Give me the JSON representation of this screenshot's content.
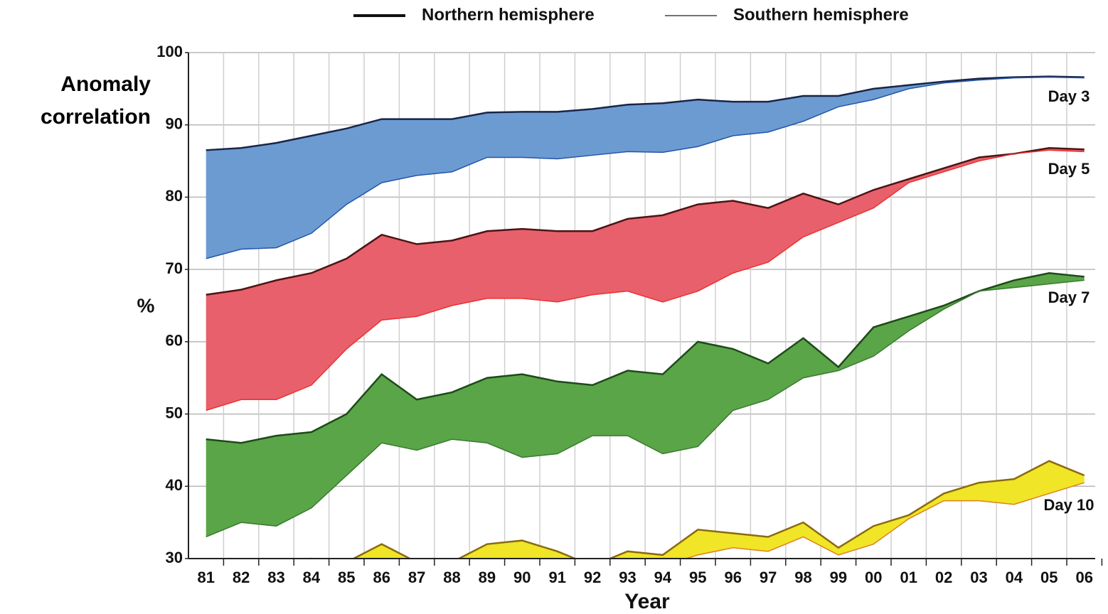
{
  "chart_data": {
    "type": "band-area",
    "y_title": "Anomaly correlation",
    "y_label": "%",
    "x_label": "Year",
    "legend": [
      {
        "name": "Northern hemisphere",
        "color": "#111111"
      },
      {
        "name": "Southern hemisphere",
        "color": "#444444"
      }
    ],
    "categories": [
      "81",
      "82",
      "83",
      "84",
      "85",
      "86",
      "87",
      "88",
      "89",
      "90",
      "91",
      "92",
      "93",
      "94",
      "95",
      "96",
      "97",
      "98",
      "99",
      "00",
      "01",
      "02",
      "03",
      "04",
      "05",
      "06"
    ],
    "ylim": [
      30,
      100
    ],
    "yticks": [
      30,
      40,
      50,
      60,
      70,
      80,
      90,
      100
    ],
    "grid": true,
    "bands": [
      {
        "label": "Day 3",
        "color": "#6c9bd2",
        "nh_color": "#1a2545",
        "sh_color": "#2255aa",
        "northern": [
          86.5,
          86.8,
          87.5,
          88.5,
          89.5,
          90.8,
          90.8,
          90.8,
          91.7,
          91.8,
          91.8,
          92.2,
          92.8,
          93.0,
          93.5,
          93.2,
          93.2,
          94.0,
          94.0,
          95.0,
          95.5,
          96.0,
          96.4,
          96.6,
          96.7,
          96.6
        ],
        "southern": [
          71.5,
          72.8,
          73.0,
          75.0,
          79.0,
          82.0,
          83.0,
          83.5,
          85.5,
          85.5,
          85.3,
          85.8,
          86.3,
          86.2,
          87.0,
          88.5,
          89.0,
          90.5,
          92.5,
          93.5,
          95.0,
          95.8,
          96.2,
          96.5,
          96.6,
          96.5
        ]
      },
      {
        "label": "Day 5",
        "color": "#e8606b",
        "nh_color": "#4a1515",
        "sh_color": "#ee3030",
        "northern": [
          66.5,
          67.2,
          68.5,
          69.5,
          71.5,
          74.8,
          73.5,
          74.0,
          75.3,
          75.6,
          75.3,
          75.3,
          77.0,
          77.5,
          79.0,
          79.5,
          78.5,
          80.5,
          79.0,
          81.0,
          82.5,
          84.0,
          85.5,
          86.0,
          86.8,
          86.6
        ],
        "southern": [
          50.5,
          52.0,
          52.0,
          54.0,
          59.0,
          63.0,
          63.5,
          65.0,
          66.0,
          66.0,
          65.5,
          66.5,
          67.0,
          65.5,
          67.0,
          69.5,
          71.0,
          74.5,
          76.5,
          78.5,
          82.0,
          83.5,
          85.0,
          86.0,
          86.5,
          86.3
        ]
      },
      {
        "label": "Day 7",
        "color": "#5aa547",
        "nh_color": "#1e4a1a",
        "sh_color": "#3a7a30",
        "northern": [
          46.5,
          46.0,
          47.0,
          47.5,
          50.0,
          55.5,
          52.0,
          53.0,
          55.0,
          55.5,
          54.5,
          54.0,
          56.0,
          55.5,
          60.0,
          59.0,
          57.0,
          60.5,
          56.5,
          62.0,
          63.5,
          65.0,
          67.0,
          68.5,
          69.5,
          69.0
        ],
        "southern": [
          33.0,
          35.0,
          34.5,
          37.0,
          41.5,
          46.0,
          45.0,
          46.5,
          46.0,
          44.0,
          44.5,
          47.0,
          47.0,
          44.5,
          45.5,
          50.5,
          52.0,
          55.0,
          56.0,
          58.0,
          61.5,
          64.5,
          67.0,
          67.5,
          68.0,
          68.5
        ]
      },
      {
        "label": "Day 10",
        "color": "#f0e526",
        "nh_color": "#8a6a10",
        "sh_color": "#e08020",
        "northern": [
          28.0,
          28.0,
          28.5,
          30.0,
          29.5,
          32.0,
          29.5,
          29.5,
          32.0,
          32.5,
          31.0,
          29.0,
          31.0,
          30.5,
          34.0,
          33.5,
          33.0,
          35.0,
          31.5,
          34.5,
          36.0,
          39.0,
          40.5,
          41.0,
          43.5,
          41.5
        ],
        "southern": [
          26.0,
          26.0,
          26.5,
          27.0,
          27.0,
          29.5,
          27.5,
          27.5,
          29.5,
          29.5,
          29.0,
          27.0,
          29.5,
          29.0,
          30.5,
          31.5,
          31.0,
          33.0,
          30.5,
          32.0,
          35.5,
          38.0,
          38.0,
          37.5,
          39.0,
          40.5
        ]
      }
    ]
  }
}
